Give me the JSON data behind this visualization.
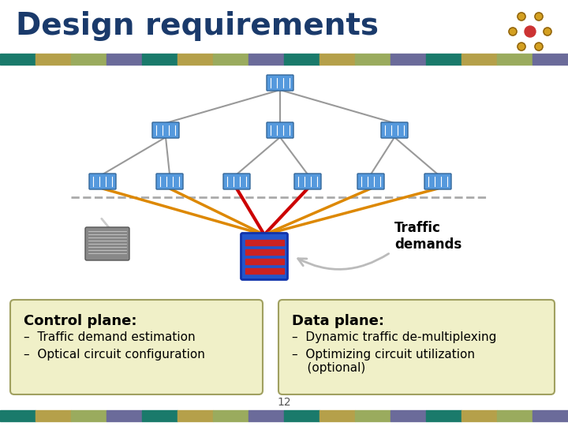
{
  "title": "Design requirements",
  "title_color": "#1a3a6b",
  "title_fontsize": 28,
  "bg_color": "#ffffff",
  "stripe_colors": [
    "#1a7a6b",
    "#b5a04a",
    "#9aab5e",
    "#6b6b9a",
    "#1a7a6b",
    "#b5a04a",
    "#9aab5e",
    "#6b6b9a",
    "#1a7a6b",
    "#b5a04a",
    "#9aab5e",
    "#6b6b9a",
    "#1a7a6b",
    "#b5a04a",
    "#9aab5e",
    "#6b6b9a"
  ],
  "control_plane_title": "Control plane:",
  "control_plane_bullets": [
    "–  Traffic demand estimation",
    "–  Optical circuit configuration"
  ],
  "data_plane_title": "Data plane:",
  "data_plane_bullets": [
    "–  Dynamic traffic de-multiplexing",
    "–  Optimizing circuit utilization\n    (optional)"
  ],
  "traffic_demands_label": "Traffic\ndemands",
  "box_bg_color": "#f0f0c8",
  "box_border_color": "#a0a060",
  "page_number": "12",
  "node_color": "#5599cc",
  "switch_color": "#4488bb"
}
